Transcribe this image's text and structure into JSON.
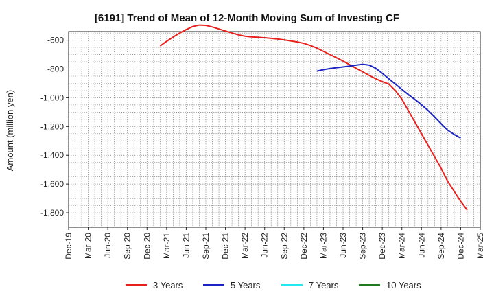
{
  "chart_data": {
    "type": "line",
    "title": "[6191]  Trend of Mean of 12-Month Moving Sum of Investing CF",
    "xlabel": "",
    "ylabel": "Amount (million yen)",
    "x_ticks": [
      "Dec-19",
      "Mar-20",
      "Jun-20",
      "Sep-20",
      "Dec-20",
      "Mar-21",
      "Jun-21",
      "Sep-21",
      "Dec-21",
      "Mar-22",
      "Jun-22",
      "Sep-22",
      "Dec-22",
      "Mar-23",
      "Jun-23",
      "Sep-23",
      "Dec-23",
      "Mar-24",
      "Jun-24",
      "Sep-24",
      "Dec-24",
      "Mar-25"
    ],
    "y_ticks": [
      -600,
      -800,
      -1000,
      -1200,
      -1400,
      -1600,
      -1800
    ],
    "y_tick_labels": [
      "-600",
      "-800",
      "-1,000",
      "-1,200",
      "-1,400",
      "-1,600",
      "-1,800"
    ],
    "ylim": [
      -1900,
      -540
    ],
    "grid": true,
    "legend_position": "bottom",
    "series": [
      {
        "name": "3 Years",
        "color": "#e8201c",
        "x": [
          "Feb-21",
          "Mar-21",
          "Apr-21",
          "May-21",
          "Jun-21",
          "Jul-21",
          "Aug-21",
          "Sep-21",
          "Oct-21",
          "Nov-21",
          "Dec-21",
          "Jan-22",
          "Feb-22",
          "Mar-22",
          "Apr-22",
          "May-22",
          "Jun-22",
          "Jul-22",
          "Aug-22",
          "Sep-22",
          "Oct-22",
          "Nov-22",
          "Dec-22",
          "Jan-23",
          "Feb-23",
          "Mar-23",
          "Apr-23",
          "May-23",
          "Jun-23",
          "Jul-23",
          "Aug-23",
          "Sep-23",
          "Oct-23",
          "Nov-23",
          "Dec-23",
          "Jan-24",
          "Feb-24",
          "Mar-24",
          "Apr-24",
          "May-24",
          "Jun-24",
          "Jul-24",
          "Aug-24",
          "Sep-24",
          "Oct-24",
          "Nov-24",
          "Dec-24",
          "Jan-25"
        ],
        "values": [
          -640,
          -608,
          -578,
          -550,
          -526,
          -505,
          -495,
          -497,
          -508,
          -522,
          -536,
          -550,
          -563,
          -572,
          -577,
          -580,
          -583,
          -587,
          -592,
          -598,
          -605,
          -612,
          -622,
          -637,
          -655,
          -678,
          -700,
          -722,
          -745,
          -770,
          -795,
          -820,
          -845,
          -868,
          -888,
          -905,
          -950,
          -1010,
          -1090,
          -1170,
          -1250,
          -1330,
          -1410,
          -1490,
          -1580,
          -1650,
          -1720,
          -1780
        ]
      },
      {
        "name": "5 Years",
        "color": "#1c24c4",
        "x": [
          "Feb-23",
          "Mar-23",
          "Apr-23",
          "May-23",
          "Jun-23",
          "Jul-23",
          "Aug-23",
          "Sep-23",
          "Oct-23",
          "Nov-23",
          "Dec-23",
          "Jan-24",
          "Feb-24",
          "Mar-24",
          "Apr-24",
          "May-24",
          "Jun-24",
          "Jul-24",
          "Aug-24",
          "Sep-24",
          "Oct-24",
          "Nov-24",
          "Dec-24"
        ],
        "values": [
          -815,
          -805,
          -797,
          -791,
          -786,
          -780,
          -773,
          -767,
          -773,
          -795,
          -830,
          -868,
          -905,
          -942,
          -978,
          -1012,
          -1048,
          -1088,
          -1133,
          -1180,
          -1225,
          -1255,
          -1280
        ]
      },
      {
        "name": "7 Years",
        "color": "#22e8f0",
        "x": [],
        "values": []
      },
      {
        "name": "10 Years",
        "color": "#1f7a1f",
        "x": [],
        "values": []
      }
    ]
  }
}
